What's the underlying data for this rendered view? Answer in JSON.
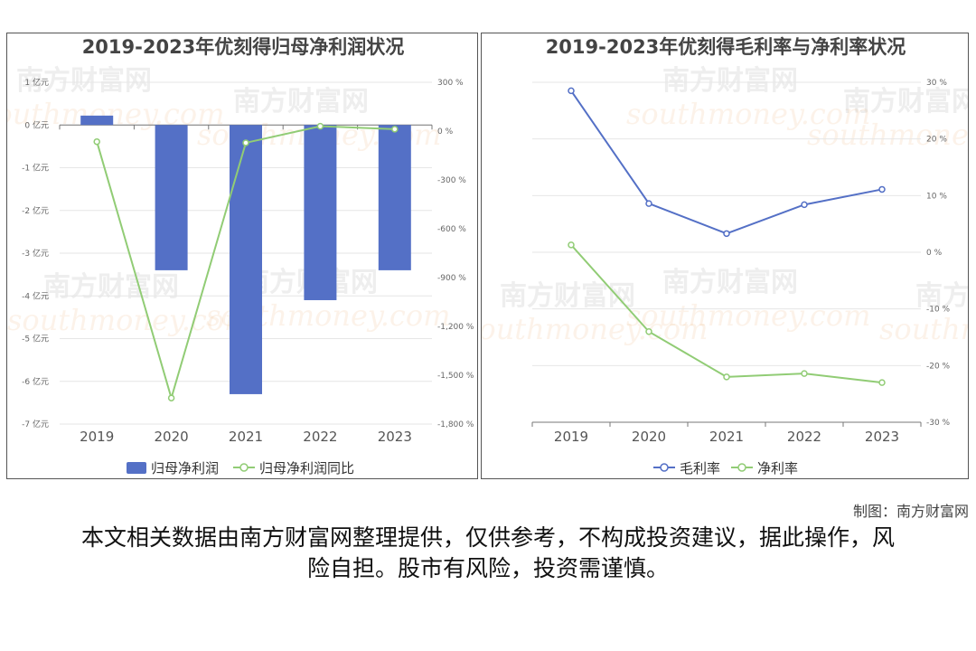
{
  "chart_data": [
    {
      "type": "bar",
      "title": "2019-2023年优刻得归母净利润状况",
      "categories": [
        "2019",
        "2020",
        "2021",
        "2022",
        "2023"
      ],
      "series": [
        {
          "name": "归母净利润",
          "type": "bar",
          "axis": "left",
          "color": "#5470c6",
          "values": [
            0.22,
            -3.4,
            -6.3,
            -4.1,
            -3.4
          ]
        },
        {
          "name": "归母净利润同比",
          "type": "line",
          "axis": "right",
          "color": "#91cc75",
          "values": [
            -65,
            -1640,
            -72,
            30,
            12
          ]
        }
      ],
      "y_left": {
        "ticks": [
          1,
          0,
          -1,
          -2,
          -3,
          -4,
          -5,
          -6,
          -7
        ],
        "labels": [
          "1 亿元",
          "0 亿元",
          "-1 亿元",
          "-2 亿元",
          "-3 亿元",
          "-4 亿元",
          "-5 亿元",
          "-6 亿元",
          "-7 亿元"
        ],
        "range": [
          -7,
          1
        ]
      },
      "y_right": {
        "ticks": [
          300,
          0,
          -300,
          -600,
          -900,
          -1200,
          -1500,
          -1800
        ],
        "labels": [
          "300 %",
          "0 %",
          "-300 %",
          "-600 %",
          "-900 %",
          "-1,200 %",
          "-1,500 %",
          "-1,800 %"
        ],
        "range": [
          -1800,
          300
        ]
      },
      "legend_position": "bottom",
      "grid": true
    },
    {
      "type": "line",
      "title": "2019-2023年优刻得毛利率与净利率状况",
      "categories": [
        "2019",
        "2020",
        "2021",
        "2022",
        "2023"
      ],
      "series": [
        {
          "name": "毛利率",
          "color": "#5470c6",
          "values": [
            28.5,
            8.6,
            3.3,
            8.4,
            11.1
          ]
        },
        {
          "name": "净利率",
          "color": "#91cc75",
          "values": [
            1.3,
            -14,
            -22,
            -21.4,
            -23
          ]
        }
      ],
      "y_right": {
        "ticks": [
          30,
          20,
          10,
          0,
          -10,
          -20,
          -30
        ],
        "labels": [
          "30 %",
          "20 %",
          "10 %",
          "0 %",
          "-10 %",
          "-20 %",
          "-30 %"
        ],
        "range": [
          -30,
          30
        ]
      },
      "legend_position": "bottom",
      "grid": true
    }
  ],
  "watermark": {
    "cn": "南方财富网",
    "en": "southmoney.com"
  },
  "credit": "制图：南方财富网",
  "disclaimer": "本文相关数据由南方财富网整理提供，仅供参考，不构成投资建议，据此操作，风险自担。股市有风险，投资需谨慎。"
}
